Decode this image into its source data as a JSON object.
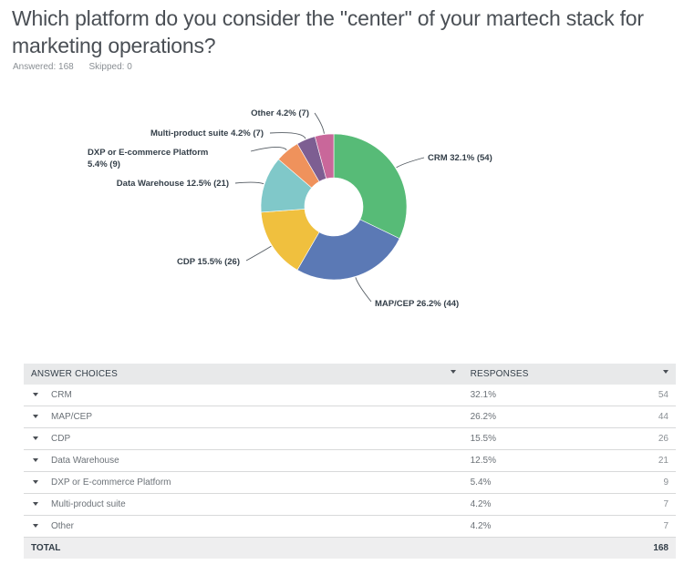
{
  "question": {
    "title": "Which platform do you consider the \"center\" of your martech stack for marketing operations?",
    "answered": "Answered: 168",
    "skipped": "Skipped: 0"
  },
  "chart_data": {
    "type": "pie",
    "subtype": "donut",
    "title": "",
    "categories": [
      "CRM",
      "MAP/CEP",
      "CDP",
      "Data Warehouse",
      "DXP or E-commerce Platform",
      "Multi-product suite",
      "Other"
    ],
    "values": [
      54,
      44,
      26,
      21,
      9,
      7,
      7
    ],
    "percents": [
      32.1,
      26.2,
      15.5,
      12.5,
      5.4,
      4.2,
      4.2
    ],
    "colors": [
      "#57bb77",
      "#5b79b5",
      "#f0c03e",
      "#80c8c9",
      "#ef925c",
      "#7d5e92",
      "#c9679a"
    ],
    "labels": [
      "CRM 32.1% (54)",
      "MAP/CEP 26.2% (44)",
      "CDP 15.5% (26)",
      "Data Warehouse 12.5% (21)",
      "DXP or E-commerce Platform 5.4% (9)",
      "Multi-product suite 4.2% (7)",
      "Other 4.2% (7)"
    ],
    "legend": "none"
  },
  "table": {
    "headers": {
      "answer": "ANSWER CHOICES",
      "responses": "RESPONSES"
    },
    "rows": [
      {
        "choice": "CRM",
        "percent": "32.1%",
        "count": "54"
      },
      {
        "choice": "MAP/CEP",
        "percent": "26.2%",
        "count": "44"
      },
      {
        "choice": "CDP",
        "percent": "15.5%",
        "count": "26"
      },
      {
        "choice": "Data Warehouse",
        "percent": "12.5%",
        "count": "21"
      },
      {
        "choice": "DXP or E-commerce Platform",
        "percent": "5.4%",
        "count": "9"
      },
      {
        "choice": "Multi-product suite",
        "percent": "4.2%",
        "count": "7"
      },
      {
        "choice": "Other",
        "percent": "4.2%",
        "count": "7"
      }
    ],
    "total_label": "TOTAL",
    "total_count": "168"
  }
}
